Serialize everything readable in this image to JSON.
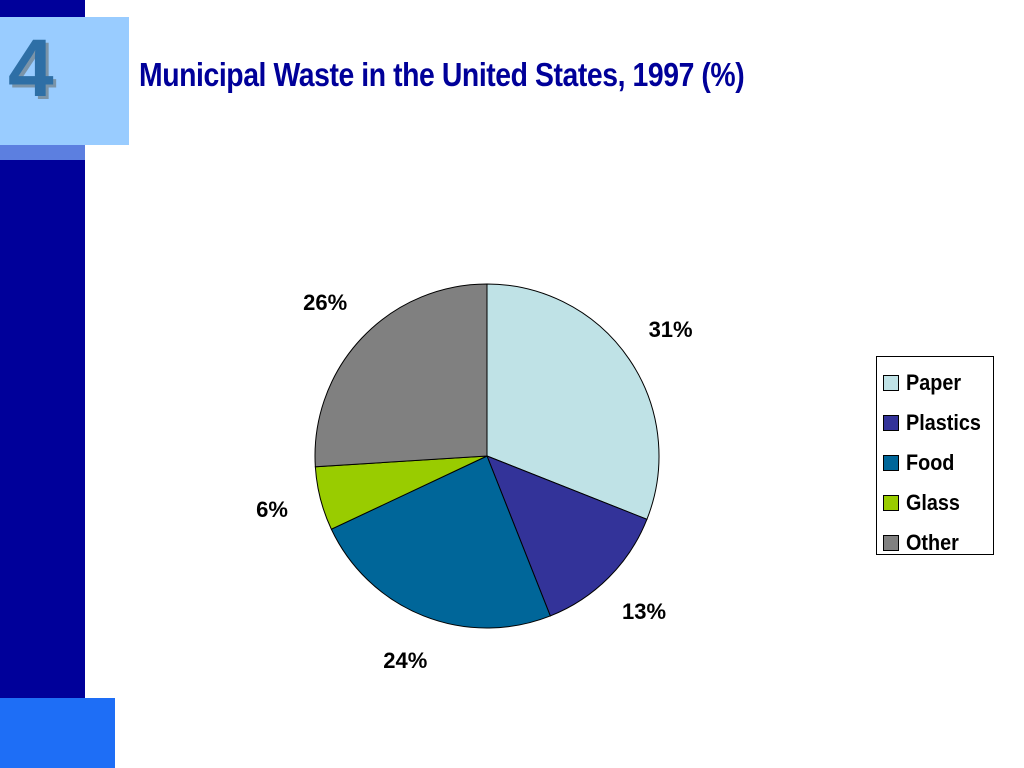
{
  "slide": {
    "number": "4",
    "title": "Municipal Waste in the United States, 1997 (%)"
  },
  "colors": {
    "sidebar": "#00009a",
    "number_box": "#99ccff",
    "bottom_block": "#1e6ef6",
    "title": "#000099"
  },
  "chart_data": {
    "type": "pie",
    "title": "Municipal Waste in the United States, 1997 (%)",
    "categories": [
      "Paper",
      "Plastics",
      "Food",
      "Glass",
      "Other"
    ],
    "values": [
      31,
      13,
      24,
      6,
      26
    ],
    "labels": [
      "31%",
      "13%",
      "24%",
      "6%",
      "26%"
    ],
    "colors": [
      "#bfe2e6",
      "#333399",
      "#006699",
      "#99cc00",
      "#808080"
    ],
    "start_angle": "12 o'clock",
    "direction": "clockwise",
    "legend": {
      "placement": "right",
      "items": [
        "Paper",
        "Plastics",
        "Food",
        "Glass",
        "Other"
      ]
    }
  }
}
